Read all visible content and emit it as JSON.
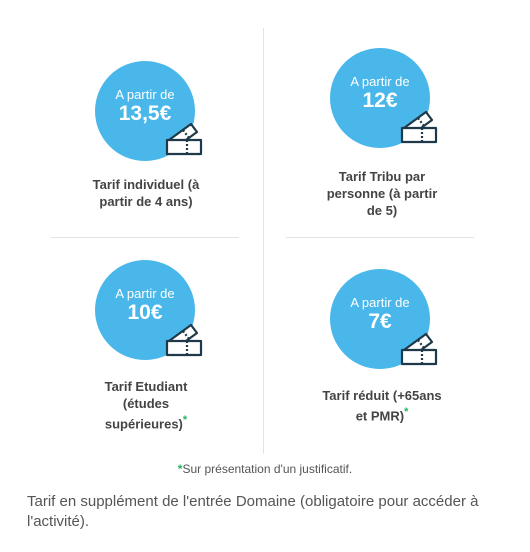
{
  "pricing": {
    "cards": [
      {
        "from": "A partir de",
        "price": "13,5€",
        "label_lines": [
          "Tarif individuel (à",
          "partir de 4 ans)"
        ],
        "asterisk": ""
      },
      {
        "from": "A partir de",
        "price": "12€",
        "label_lines": [
          "Tarif Tribu par",
          "personne (à partir",
          "de 5)"
        ],
        "asterisk": ""
      },
      {
        "from": "A partir de",
        "price": "10€",
        "label_lines": [
          "Tarif Etudiant",
          "(études",
          "supérieures)"
        ],
        "asterisk": "*"
      },
      {
        "from": "A partir de",
        "price": "7€",
        "label_lines": [
          "Tarif réduit (+65ans",
          "et PMR)"
        ],
        "asterisk": "*"
      }
    ],
    "note_asterisk": "*",
    "note_text": "Sur présentation d'un justificatif.",
    "footer_text": "Tarif en supplément de l'entrée Domaine (obligatoire pour accéder à l'activité)."
  },
  "colors": {
    "circle": "#4ab7ea",
    "asterisk": "#1fb35a",
    "ticket_stroke": "#1e3a4a"
  },
  "icons": {
    "ticket": "ticket-icon"
  }
}
